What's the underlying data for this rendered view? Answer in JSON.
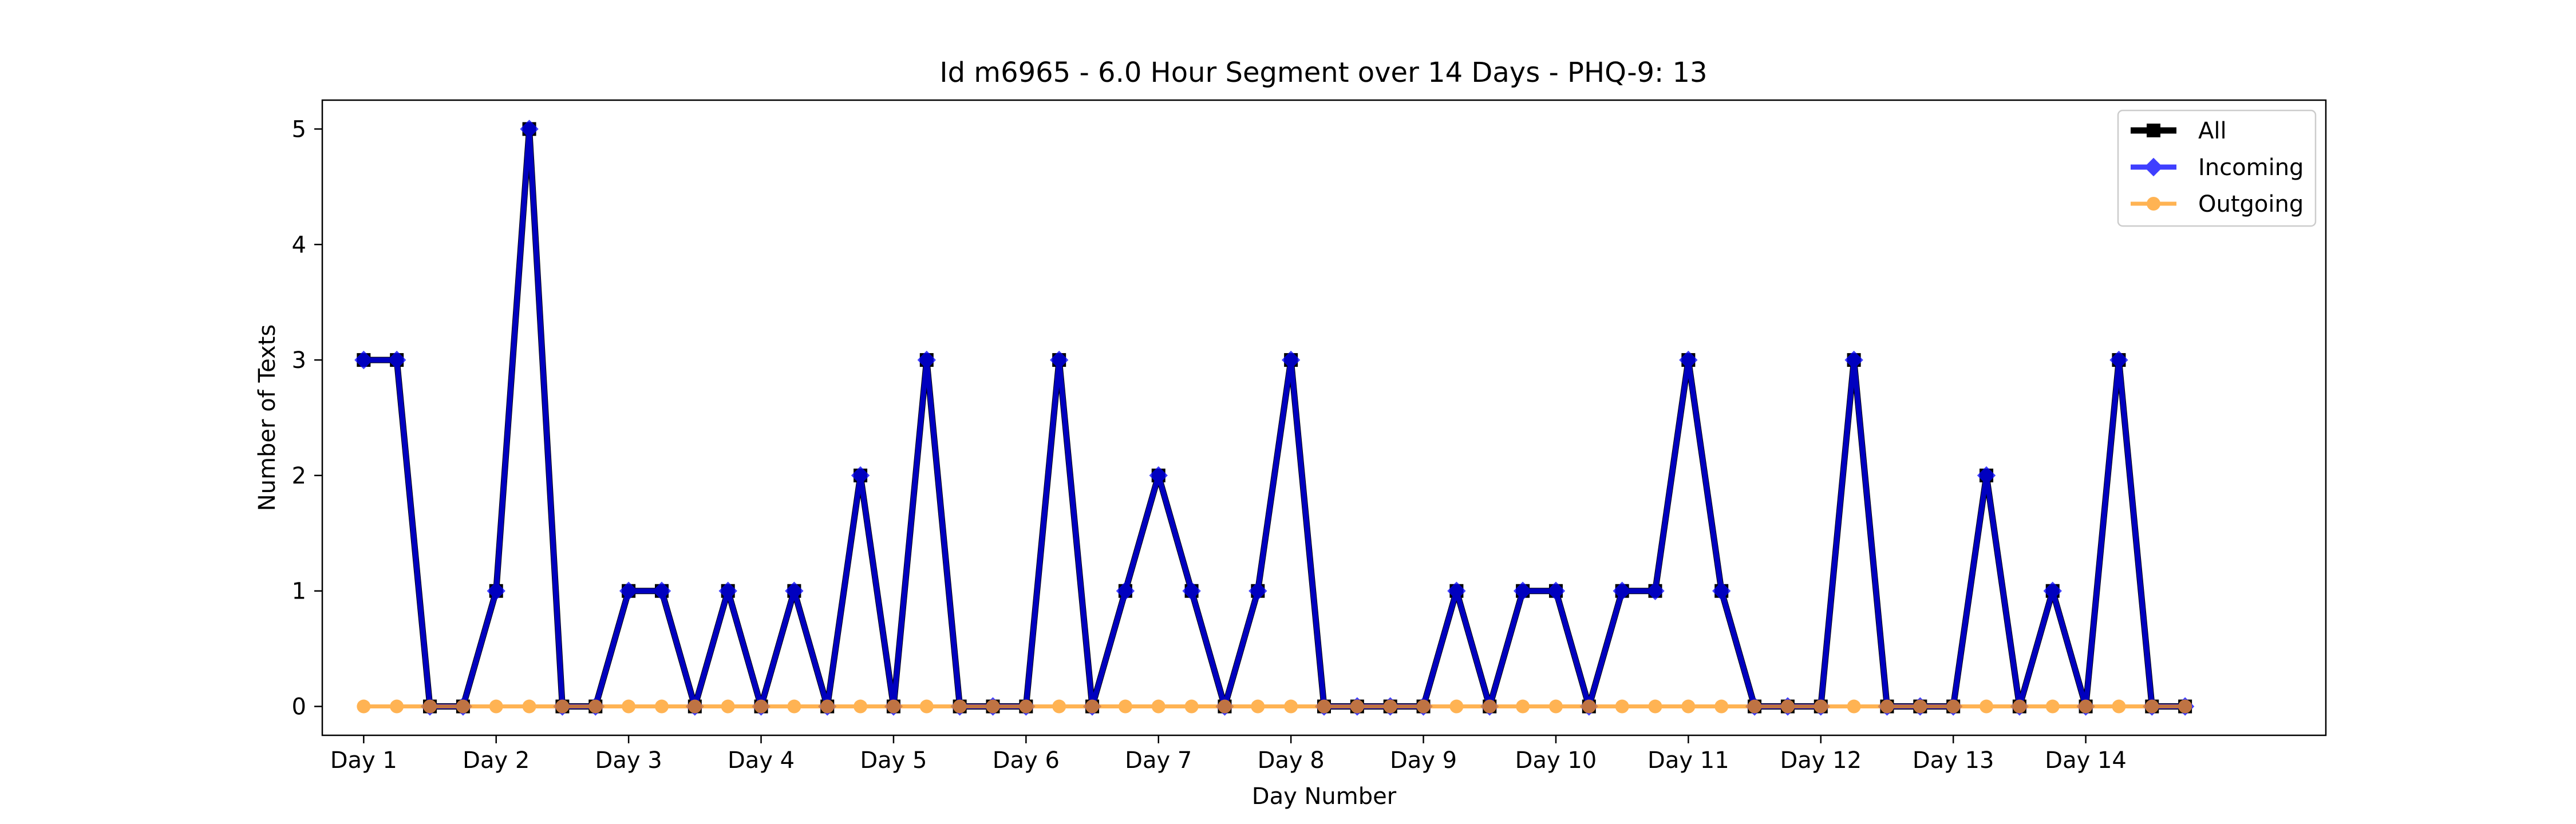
{
  "chart_data": {
    "type": "line",
    "title": "Id m6965 - 6.0 Hour Segment over 14 Days - PHQ-9: 13",
    "xlabel": "Day Number",
    "ylabel": "Number of Texts",
    "xlim": [
      -1.25,
      59.25
    ],
    "ylim": [
      -0.25,
      5.25
    ],
    "x_ticks": [
      {
        "x": 0,
        "label": "Day 1"
      },
      {
        "x": 4,
        "label": "Day 2"
      },
      {
        "x": 8,
        "label": "Day 3"
      },
      {
        "x": 12,
        "label": "Day 4"
      },
      {
        "x": 16,
        "label": "Day 5"
      },
      {
        "x": 20,
        "label": "Day 6"
      },
      {
        "x": 24,
        "label": "Day 7"
      },
      {
        "x": 28,
        "label": "Day 8"
      },
      {
        "x": 32,
        "label": "Day 9"
      },
      {
        "x": 36,
        "label": "Day 10"
      },
      {
        "x": 40,
        "label": "Day 11"
      },
      {
        "x": 44,
        "label": "Day 12"
      },
      {
        "x": 48,
        "label": "Day 13"
      },
      {
        "x": 52,
        "label": "Day 14"
      }
    ],
    "y_ticks": [
      0,
      1,
      2,
      3,
      4,
      5
    ],
    "grid": false,
    "legend_position": "top-right",
    "x": [
      0,
      1,
      2,
      3,
      4,
      5,
      6,
      7,
      8,
      9,
      10,
      11,
      12,
      13,
      14,
      15,
      16,
      17,
      18,
      19,
      20,
      21,
      22,
      23,
      24,
      25,
      26,
      27,
      28,
      29,
      30,
      31,
      32,
      33,
      34,
      35,
      36,
      37,
      38,
      39,
      40,
      41,
      42,
      43,
      44,
      45,
      46,
      47,
      48,
      49,
      50,
      51,
      52,
      53,
      54,
      55
    ],
    "series": [
      {
        "name": "All",
        "color": "#000000",
        "marker": "square",
        "values": [
          3,
          3,
          0,
          0,
          1,
          5,
          0,
          0,
          1,
          1,
          0,
          1,
          0,
          1,
          0,
          2,
          0,
          3,
          0,
          0,
          0,
          3,
          0,
          1,
          2,
          1,
          0,
          1,
          3,
          0,
          0,
          0,
          0,
          1,
          0,
          1,
          1,
          0,
          1,
          1,
          3,
          1,
          0,
          0,
          0,
          3,
          0,
          0,
          0,
          2,
          0,
          1,
          0,
          3,
          0,
          0
        ]
      },
      {
        "name": "Incoming",
        "color": "#0000ff",
        "marker": "diamond",
        "values": [
          3,
          3,
          0,
          0,
          1,
          5,
          0,
          0,
          1,
          1,
          0,
          1,
          0,
          1,
          0,
          2,
          0,
          3,
          0,
          0,
          0,
          3,
          0,
          1,
          2,
          1,
          0,
          1,
          3,
          0,
          0,
          0,
          0,
          1,
          0,
          1,
          1,
          0,
          1,
          1,
          3,
          1,
          0,
          0,
          0,
          3,
          0,
          0,
          0,
          2,
          0,
          1,
          0,
          3,
          0,
          0
        ]
      },
      {
        "name": "Outgoing",
        "color": "#ff9a1a",
        "marker": "circle",
        "values": [
          0,
          0,
          0,
          0,
          0,
          0,
          0,
          0,
          0,
          0,
          0,
          0,
          0,
          0,
          0,
          0,
          0,
          0,
          0,
          0,
          0,
          0,
          0,
          0,
          0,
          0,
          0,
          0,
          0,
          0,
          0,
          0,
          0,
          0,
          0,
          0,
          0,
          0,
          0,
          0,
          0,
          0,
          0,
          0,
          0,
          0,
          0,
          0,
          0,
          0,
          0,
          0,
          0,
          0,
          0,
          0
        ]
      }
    ]
  }
}
